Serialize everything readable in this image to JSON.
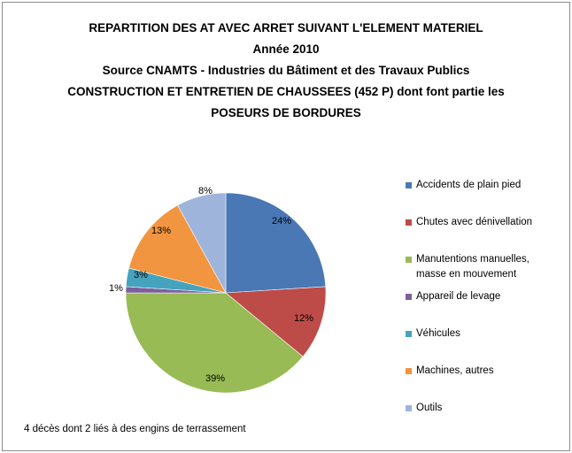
{
  "chart_data": {
    "type": "pie",
    "title_lines": [
      "REPARTITION DES AT AVEC ARRET SUIVANT L'ELEMENT MATERIEL",
      "Année 2010",
      "Source CNAMTS - Industries du Bâtiment et des Travaux Publics",
      "CONSTRUCTION ET ENTRETIEN DE CHAUSSEES (452 P) dont font partie les",
      "POSEURS DE BORDURES"
    ],
    "slices": [
      {
        "label": "Accidents de plain pied",
        "value": 24,
        "data_label": "24%",
        "color": "#4a78b4"
      },
      {
        "label": "Chutes avec dénivellation",
        "value": 12,
        "data_label": "12%",
        "color": "#bd4b48"
      },
      {
        "label": "Manutentions manuelles, masse en mouvement",
        "value": 39,
        "data_label": "39%",
        "color": "#98bb55"
      },
      {
        "label": "Appareil de levage",
        "value": 1,
        "data_label": "1%",
        "color": "#7c5f9e"
      },
      {
        "label": "Véhicules",
        "value": 3,
        "data_label": "3%",
        "color": "#45a3bd"
      },
      {
        "label": "Machines, autres",
        "value": 13,
        "data_label": "13%",
        "color": "#f19540"
      },
      {
        "label": "Outils",
        "value": 8,
        "data_label": "8%",
        "color": "#9eb4db"
      }
    ],
    "legend_position": "right",
    "footnote": "4 décès dont 2 liés à des engins de terrassement"
  }
}
